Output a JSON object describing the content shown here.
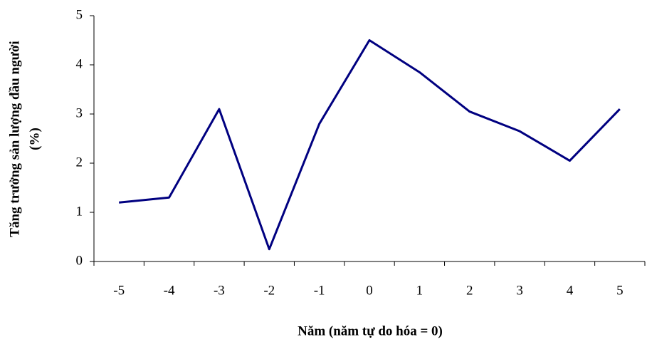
{
  "chart_data": {
    "type": "line",
    "xlabel": "Năm (năm tự do hóa = 0)",
    "ylabel": [
      "Tăng trưởng sản lượng đầu người",
      "(%)"
    ],
    "categories": [
      "-5",
      "-4",
      "-3",
      "-2",
      "-1",
      "0",
      "1",
      "2",
      "3",
      "4",
      "5"
    ],
    "values": [
      1.2,
      1.3,
      3.1,
      0.25,
      2.8,
      4.5,
      3.85,
      3.05,
      2.65,
      2.05,
      3.1
    ],
    "color": "#000080",
    "ylim": [
      0,
      5
    ],
    "yticks": [
      0,
      1,
      2,
      3,
      4,
      5
    ],
    "grid": false
  }
}
